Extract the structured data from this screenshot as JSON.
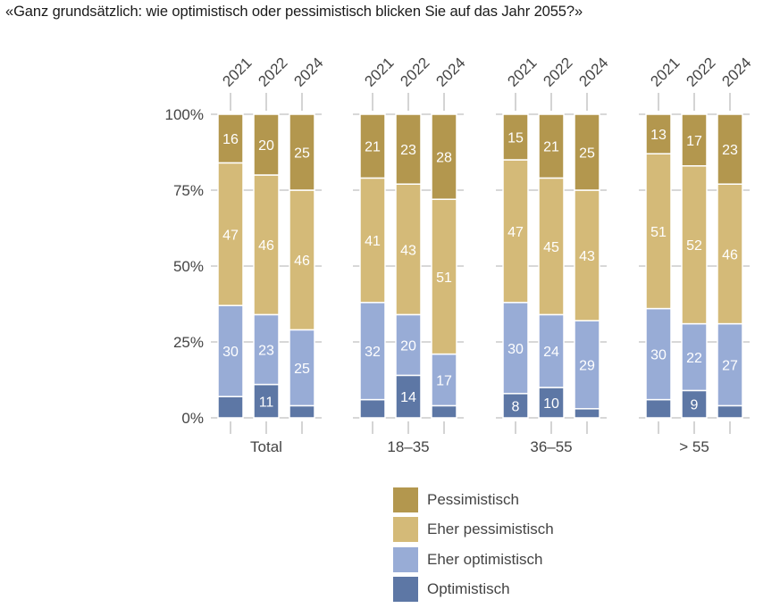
{
  "title": "«Ganz grundsätzlich: wie optimistisch oder pessimistisch blicken Sie auf das Jahr 2055?»",
  "colors": {
    "pessimistisch": "#b3974e",
    "eher_pessimistisch": "#d4ba78",
    "eher_optimistisch": "#98acd6",
    "optimistisch": "#5d77a5",
    "axis": "#999999",
    "text": "#444444"
  },
  "legend": [
    {
      "label": "Pessimistisch",
      "color": "#b3974e"
    },
    {
      "label": "Eher pessimistisch",
      "color": "#d4ba78"
    },
    {
      "label": "Eher optimistisch",
      "color": "#98acd6"
    },
    {
      "label": "Optimistisch",
      "color": "#5d77a5"
    }
  ],
  "chart_data": {
    "type": "bar",
    "stacked": true,
    "title": "«Ganz grundsätzlich: wie optimistisch oder pessimistisch blicken Sie auf das Jahr 2055?»",
    "ylim": [
      0,
      100
    ],
    "yticks": [
      "0%",
      "25%",
      "50%",
      "75%",
      "100%"
    ],
    "years": [
      "2021",
      "2022",
      "2024"
    ],
    "groups": [
      {
        "name": "Total",
        "bars": [
          {
            "year": "2021",
            "Optimistisch": 7,
            "Eher optimistisch": 30,
            "Eher pessimistisch": 47,
            "Pessimistisch": 16
          },
          {
            "year": "2022",
            "Optimistisch": 11,
            "Eher optimistisch": 23,
            "Eher pessimistisch": 46,
            "Pessimistisch": 20
          },
          {
            "year": "2024",
            "Optimistisch": 4,
            "Eher optimistisch": 25,
            "Eher pessimistisch": 46,
            "Pessimistisch": 25
          }
        ]
      },
      {
        "name": "18–35",
        "bars": [
          {
            "year": "2021",
            "Optimistisch": 6,
            "Eher optimistisch": 32,
            "Eher pessimistisch": 41,
            "Pessimistisch": 21
          },
          {
            "year": "2022",
            "Optimistisch": 14,
            "Eher optimistisch": 20,
            "Eher pessimistisch": 43,
            "Pessimistisch": 23
          },
          {
            "year": "2024",
            "Optimistisch": 4,
            "Eher optimistisch": 17,
            "Eher pessimistisch": 51,
            "Pessimistisch": 28
          }
        ]
      },
      {
        "name": "36–55",
        "bars": [
          {
            "year": "2021",
            "Optimistisch": 8,
            "Eher optimistisch": 30,
            "Eher pessimistisch": 47,
            "Pessimistisch": 15
          },
          {
            "year": "2022",
            "Optimistisch": 10,
            "Eher optimistisch": 24,
            "Eher pessimistisch": 45,
            "Pessimistisch": 21
          },
          {
            "year": "2024",
            "Optimistisch": 3,
            "Eher optimistisch": 29,
            "Eher pessimistisch": 43,
            "Pessimistisch": 25
          }
        ]
      },
      {
        "name": "> 55",
        "bars": [
          {
            "year": "2021",
            "Optimistisch": 6,
            "Eher optimistisch": 30,
            "Eher pessimistisch": 51,
            "Pessimistisch": 13
          },
          {
            "year": "2022",
            "Optimistisch": 9,
            "Eher optimistisch": 22,
            "Eher pessimistisch": 52,
            "Pessimistisch": 17
          },
          {
            "year": "2024",
            "Optimistisch": 4,
            "Eher optimistisch": 27,
            "Eher pessimistisch": 46,
            "Pessimistisch": 23
          }
        ]
      }
    ],
    "series_order": [
      "Optimistisch",
      "Eher optimistisch",
      "Eher pessimistisch",
      "Pessimistisch"
    ],
    "label_min_value": 8
  }
}
